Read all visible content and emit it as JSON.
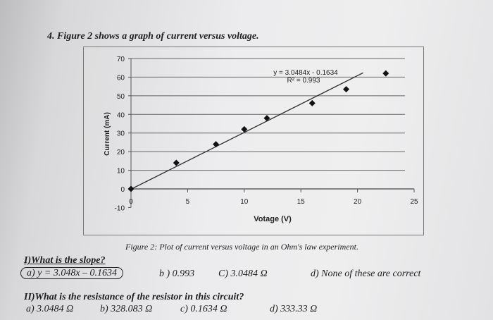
{
  "question_heading": "4. Figure 2 shows a graph of current versus voltage.",
  "chart_data": {
    "type": "scatter",
    "xlabel": "Votage (V)",
    "ylabel": "Current (mA)",
    "xlim": [
      0,
      25
    ],
    "ylim": [
      -10,
      70
    ],
    "x_ticks": [
      "0",
      "5",
      "10",
      "15",
      "20",
      "25"
    ],
    "y_ticks": [
      "70",
      "60",
      "50",
      "40",
      "30",
      "20",
      "10",
      "0",
      "-10"
    ],
    "grid": "horizontal",
    "series": [
      {
        "x": [
          0,
          4,
          7.5,
          10,
          12,
          16,
          19,
          22.5
        ],
        "y": [
          0,
          14,
          24,
          32,
          38,
          46,
          53.5,
          62
        ]
      }
    ],
    "trendline": {
      "equation": "y = 3.0484x - 0.1634",
      "r_squared": "R² = 0.993",
      "slope": 3.0484,
      "intercept": -0.1634
    }
  },
  "caption": "Figure 2: Plot of current versus voltage in an Ohm's law experiment.",
  "q1": {
    "prompt": "I)What is the slope?",
    "a": "a) y = 3.048x – 0.1634",
    "b": "b ) 0.993",
    "c": "C) 3.0484 Ω",
    "d": "d) None of these are correct"
  },
  "q2": {
    "prompt": "II)What is the resistance of the resistor in this circuit?",
    "a": "a)  3.0484 Ω",
    "b": "b) 328.083 Ω",
    "c": "c) 0.1634 Ω",
    "d": "d) 333.33 Ω"
  }
}
